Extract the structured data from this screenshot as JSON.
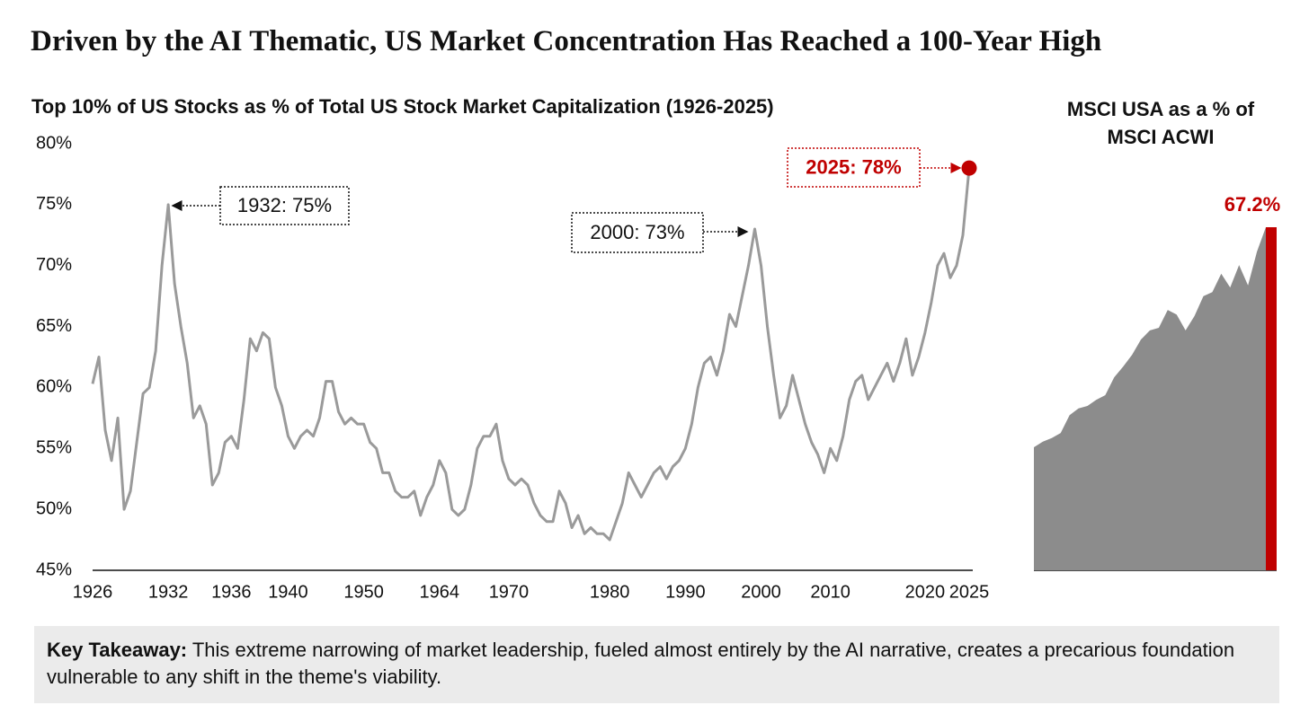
{
  "title": "Driven by the AI Thematic, US Market Concentration Has Reached a 100-Year High",
  "chart_data": [
    {
      "type": "line",
      "title": "Top 10% of US Stocks as % of Total US Stock Market Capitalization (1926-2025)",
      "categories": [
        "1926",
        null,
        null,
        null,
        null,
        null,
        null,
        null,
        null,
        null,
        null,
        null,
        "1932",
        null,
        null,
        null,
        null,
        null,
        null,
        null,
        null,
        null,
        "1936",
        null,
        null,
        null,
        null,
        null,
        null,
        null,
        null,
        "1940",
        null,
        null,
        null,
        null,
        null,
        null,
        null,
        null,
        null,
        null,
        null,
        "1950",
        null,
        null,
        null,
        null,
        null,
        null,
        null,
        null,
        null,
        null,
        null,
        "1964",
        null,
        null,
        null,
        null,
        null,
        null,
        null,
        null,
        null,
        null,
        "1970",
        null,
        null,
        null,
        null,
        null,
        null,
        null,
        null,
        null,
        null,
        null,
        null,
        null,
        null,
        null,
        "1980",
        null,
        null,
        null,
        null,
        null,
        null,
        null,
        null,
        null,
        null,
        null,
        "1990",
        null,
        null,
        null,
        null,
        null,
        null,
        null,
        null,
        null,
        null,
        null,
        "2000",
        null,
        null,
        null,
        null,
        null,
        null,
        null,
        null,
        null,
        null,
        "2010",
        null,
        null,
        null,
        null,
        null,
        null,
        null,
        null,
        null,
        null,
        null,
        null,
        null,
        null,
        "2020",
        null,
        null,
        null,
        null,
        null,
        null,
        "2025"
      ],
      "values": [
        60.3,
        62.5,
        56.5,
        54,
        57.5,
        50,
        51.5,
        55.5,
        59.5,
        60,
        63,
        70,
        75,
        68.5,
        65,
        62,
        57.5,
        58.5,
        57,
        52,
        53,
        55.5,
        56,
        55,
        59,
        64,
        63,
        64.5,
        64,
        60,
        58.5,
        56,
        55,
        56,
        56.5,
        56,
        57.5,
        60.5,
        60.5,
        58,
        57,
        57.5,
        57,
        57,
        55.5,
        55,
        53,
        53,
        51.5,
        51,
        51,
        51.5,
        49.5,
        51,
        52,
        54,
        53,
        50,
        49.5,
        50,
        52,
        55,
        56,
        56,
        57,
        54,
        52.5,
        52,
        52.5,
        52,
        50.5,
        49.5,
        49,
        49,
        51.5,
        50.5,
        48.5,
        49.5,
        48,
        48.5,
        48,
        48,
        47.5,
        49,
        50.5,
        53,
        52,
        51,
        52,
        53,
        53.5,
        52.5,
        53.5,
        54,
        55,
        57,
        60,
        62,
        62.5,
        61,
        63,
        66,
        65,
        67.5,
        70,
        73,
        70,
        65,
        61,
        57.5,
        58.5,
        61,
        59,
        57,
        55.5,
        54.5,
        53,
        55,
        54,
        56,
        59,
        60.5,
        61,
        59,
        60,
        61,
        62,
        60.5,
        62,
        64,
        61,
        62.5,
        64.5,
        67,
        70,
        71,
        69,
        70,
        72.5,
        78
      ],
      "color": "#9a9a9a",
      "highlight_color": "#c00000",
      "ylim": [
        45,
        80
      ],
      "yticks": [
        {
          "value": 45,
          "label": "45%"
        },
        {
          "value": 50,
          "label": "50%"
        },
        {
          "value": 55,
          "label": "55%"
        },
        {
          "value": 60,
          "label": "60%"
        },
        {
          "value": 65,
          "label": "65%"
        },
        {
          "value": 70,
          "label": "70%"
        },
        {
          "value": 75,
          "label": "75%"
        },
        {
          "value": 80,
          "label": "80%"
        }
      ],
      "grid": false,
      "annotations": [
        {
          "text": "1932: 75%",
          "color": "#111111"
        },
        {
          "text": "2000: 73%",
          "color": "#111111"
        },
        {
          "text": "2025: 78%",
          "color": "#c00000"
        }
      ]
    },
    {
      "type": "area",
      "title": "MSCI USA as a % of MSCI ACWI",
      "values": [
        24.1,
        25.2,
        25.9,
        26.9,
        30.4,
        31.7,
        32.2,
        33.4,
        34.3,
        37.8,
        39.9,
        42.2,
        45.2,
        47.0,
        47.5,
        51.0,
        50.1,
        47.0,
        49.8,
        53.7,
        54.5,
        58.1,
        55.4,
        59.8,
        55.8,
        62.4,
        67.2
      ],
      "value_labels": [
        null,
        null,
        null,
        null,
        null,
        null,
        null,
        null,
        null,
        null,
        null,
        null,
        null,
        null,
        null,
        null,
        null,
        null,
        null,
        null,
        null,
        null,
        null,
        null,
        null,
        null,
        "67.2%"
      ],
      "color": "#8c8c8c",
      "highlight_color": "#c00000"
    }
  ],
  "takeaway": {
    "label": "Key Takeaway:",
    "text": "This extreme narrowing of market leadership, fueled almost entirely by the AI narrative, creates a precarious foundation vulnerable to any shift in the theme's viability."
  }
}
